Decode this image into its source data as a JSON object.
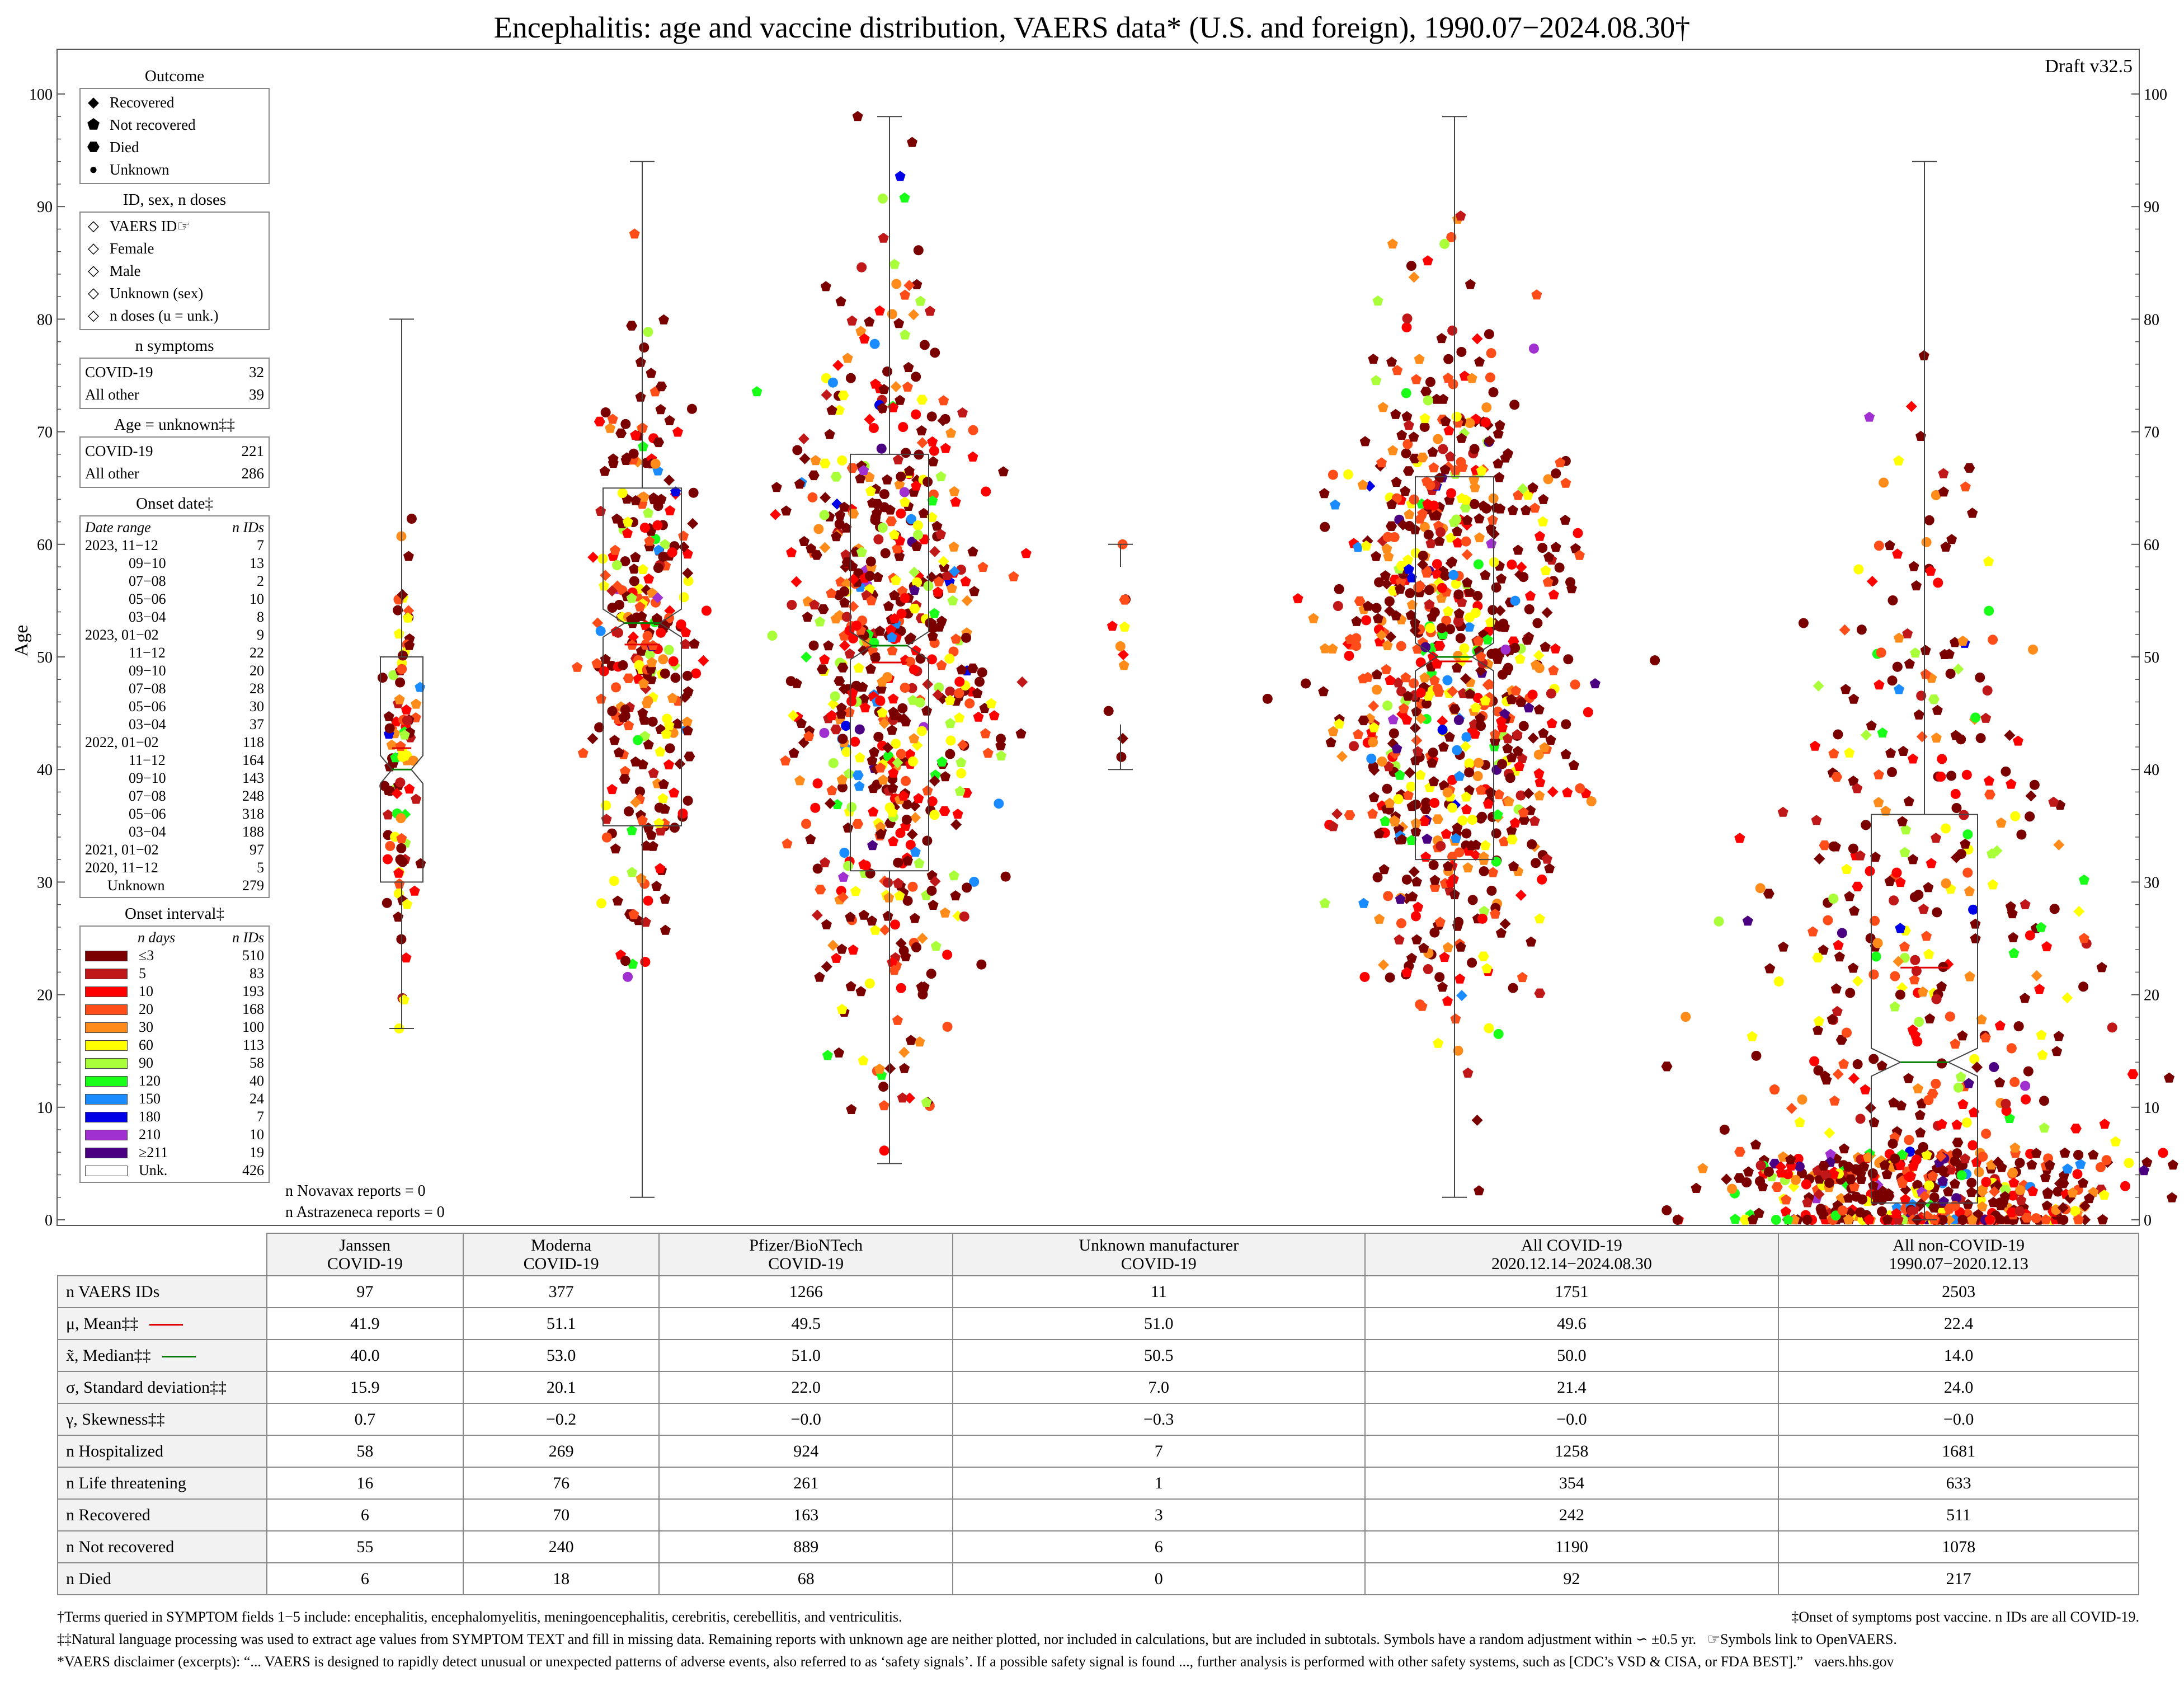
{
  "title": "Encephalitis: age and vaccine distribution, VAERS data* (U.S. and foreign), 1990.07−2024.08.30†",
  "draft": "Draft v32.5",
  "y_axis_label": "Age",
  "legend": {
    "outcome_title": "Outcome",
    "outcomes": [
      {
        "label": "Recovered",
        "icon": "diamond-icon"
      },
      {
        "label": "Not recovered",
        "icon": "pentagon-icon"
      },
      {
        "label": "Died",
        "icon": "hexagon-icon"
      },
      {
        "label": "Unknown",
        "icon": "circle-icon"
      }
    ],
    "id_title": "ID, sex, n doses",
    "id_items": [
      "VAERS ID☞",
      "Female",
      "Male",
      "Unknown (sex)",
      "n doses (u = unk.)"
    ],
    "symptoms_title": "n symptoms",
    "symptoms": [
      {
        "label": "COVID-19",
        "value": "32"
      },
      {
        "label": "All other",
        "value": "39"
      }
    ],
    "age_unknown_title": "Age = unknown‡‡",
    "age_unknown": [
      {
        "label": "COVID-19",
        "value": "221"
      },
      {
        "label": "All other",
        "value": "286"
      }
    ],
    "onset_date_title": "Onset date‡",
    "onset_date_header": {
      "range": "Date range",
      "n": "n IDs"
    },
    "onset_dates": [
      {
        "range": "2023, 11−12",
        "n": "7"
      },
      {
        "range": "09−10",
        "n": "13"
      },
      {
        "range": "07−08",
        "n": "2"
      },
      {
        "range": "05−06",
        "n": "10"
      },
      {
        "range": "03−04",
        "n": "8"
      },
      {
        "range": "2023, 01−02",
        "n": "9"
      },
      {
        "range": "11−12",
        "n": "22"
      },
      {
        "range": "09−10",
        "n": "20"
      },
      {
        "range": "07−08",
        "n": "28"
      },
      {
        "range": "05−06",
        "n": "30"
      },
      {
        "range": "03−04",
        "n": "37"
      },
      {
        "range": "2022, 01−02",
        "n": "118"
      },
      {
        "range": "11−12",
        "n": "164"
      },
      {
        "range": "09−10",
        "n": "143"
      },
      {
        "range": "07−08",
        "n": "248"
      },
      {
        "range": "05−06",
        "n": "318"
      },
      {
        "range": "03−04",
        "n": "188"
      },
      {
        "range": "2021, 01−02",
        "n": "97"
      },
      {
        "range": "2020, 11−12",
        "n": "5"
      },
      {
        "range": "Unknown",
        "n": "279"
      }
    ],
    "onset_interval_title": "Onset interval‡",
    "onset_interval_header": {
      "days": "n days",
      "n": "n IDs"
    },
    "onset_intervals": [
      {
        "days": "≤3",
        "n": "510",
        "color": "#7a0000"
      },
      {
        "days": "5",
        "n": "83",
        "color": "#c01818"
      },
      {
        "days": "10",
        "n": "193",
        "color": "#ff0000"
      },
      {
        "days": "20",
        "n": "168",
        "color": "#ff4d1a"
      },
      {
        "days": "30",
        "n": "100",
        "color": "#ff8c1a"
      },
      {
        "days": "60",
        "n": "113",
        "color": "#ffff00"
      },
      {
        "days": "90",
        "n": "58",
        "color": "#a8ff3a"
      },
      {
        "days": "120",
        "n": "40",
        "color": "#1aff1a"
      },
      {
        "days": "150",
        "n": "24",
        "color": "#1a8cff"
      },
      {
        "days": "180",
        "n": "7",
        "color": "#0000e6"
      },
      {
        "days": "210",
        "n": "10",
        "color": "#a030d0"
      },
      {
        "days": "≥211",
        "n": "19",
        "color": "#4b0082"
      },
      {
        "days": "Unk.",
        "n": "426",
        "color": "#ffffff"
      }
    ]
  },
  "notes": [
    "n Novavax reports = 0",
    "n Astrazeneca reports = 0"
  ],
  "chart_data": {
    "type": "scatter",
    "subtype": "beeswarm with notched box plots",
    "title": "Encephalitis: age and vaccine distribution, VAERS data* (U.S. and foreign), 1990.07−2024.08.30†",
    "ylabel": "Age",
    "ylim": [
      0,
      100
    ],
    "yticks": [
      0,
      10,
      20,
      30,
      40,
      50,
      60,
      70,
      80,
      90,
      100
    ],
    "categories": [
      "Janssen COVID-19",
      "Moderna COVID-19",
      "Pfizer/BioNTech COVID-19",
      "Unknown manufacturer COVID-19",
      "All COVID-19",
      "All non-COVID-19"
    ],
    "series": [
      {
        "name": "Janssen COVID-19",
        "n": 97,
        "mean": 41.9,
        "median": 40.0,
        "q1": 30,
        "q3": 50,
        "min": 17,
        "max": 80
      },
      {
        "name": "Moderna COVID-19",
        "n": 377,
        "mean": 51.1,
        "median": 53.0,
        "q1": 35,
        "q3": 65,
        "min": 2,
        "max": 94
      },
      {
        "name": "Pfizer/BioNTech COVID-19",
        "n": 1266,
        "mean": 49.5,
        "median": 51.0,
        "q1": 31,
        "q3": 68,
        "min": 5,
        "max": 98
      },
      {
        "name": "Unknown manufacturer COVID-19",
        "n": 11,
        "mean": 51.0,
        "median": 50.5,
        "q1": 44,
        "q3": 58,
        "min": 40,
        "max": 60
      },
      {
        "name": "All COVID-19",
        "n": 1751,
        "mean": 49.6,
        "median": 50.0,
        "q1": 32,
        "q3": 66,
        "min": 2,
        "max": 98
      },
      {
        "name": "All non-COVID-19",
        "n": 2503,
        "mean": 22.4,
        "median": 14.0,
        "q1": 1.5,
        "q3": 36,
        "min": 0,
        "max": 94
      }
    ]
  },
  "table": {
    "headers": [
      "Janssen\nCOVID-19",
      "Moderna\nCOVID-19",
      "Pfizer/BioNTech\nCOVID-19",
      "Unknown manufacturer\nCOVID-19",
      "All COVID-19\n2020.12.14−2024.08.30",
      "All non-COVID-19\n1990.07−2020.12.13"
    ],
    "rows": [
      {
        "label": "n VAERS IDs",
        "values": [
          "97",
          "377",
          "1266",
          "11",
          "1751",
          "2503"
        ]
      },
      {
        "label": "μ, Mean‡‡",
        "values": [
          "41.9",
          "51.1",
          "49.5",
          "51.0",
          "49.6",
          "22.4"
        ]
      },
      {
        "label": "x̃, Median‡‡",
        "values": [
          "40.0",
          "53.0",
          "51.0",
          "50.5",
          "50.0",
          "14.0"
        ]
      },
      {
        "label": "σ, Standard deviation‡‡",
        "values": [
          "15.9",
          "20.1",
          "22.0",
          "7.0",
          "21.4",
          "24.0"
        ]
      },
      {
        "label": "γ, Skewness‡‡",
        "values": [
          "0.7",
          "−0.2",
          "−0.0",
          "−0.3",
          "−0.0",
          "−0.0"
        ]
      },
      {
        "label": "n Hospitalized",
        "values": [
          "58",
          "269",
          "924",
          "7",
          "1258",
          "1681"
        ]
      },
      {
        "label": "n Life threatening",
        "values": [
          "16",
          "76",
          "261",
          "1",
          "354",
          "633"
        ]
      },
      {
        "label": "n Recovered",
        "values": [
          "6",
          "70",
          "163",
          "3",
          "242",
          "511"
        ]
      },
      {
        "label": "n Not recovered",
        "values": [
          "55",
          "240",
          "889",
          "6",
          "1190",
          "1078"
        ]
      },
      {
        "label": "n Died",
        "values": [
          "6",
          "18",
          "68",
          "0",
          "92",
          "217"
        ]
      }
    ]
  },
  "footnotes": {
    "terms": "†Terms queried in SYMPTOM fields 1−5 include: encephalitis, encephalomyelitis, meningoencephalitis, cerebritis, cerebellitis, and ventriculitis.",
    "onset": "‡Onset of symptoms post vaccine. n IDs are all COVID-19.",
    "nlp": "‡‡Natural language processing was used to extract age values from SYMPTOM TEXT and fill in missing data. Remaining reports with unknown age are neither plotted, nor included in calculations, but are included in subtotals. Symbols have a random adjustment within ∽ ±0.5 yr.",
    "symbols": "☞Symbols link to OpenVAERS.",
    "disclaimer": "*VAERS disclaimer (excerpts): “... VAERS is designed to rapidly detect unusual or unexpected patterns of adverse events, also referred to as ‘safety signals’. If a possible safety signal is found ..., further analysis is performed with other safety systems, such as [CDC’s VSD & CISA, or FDA BEST].”",
    "site": "vaers.hhs.gov"
  }
}
